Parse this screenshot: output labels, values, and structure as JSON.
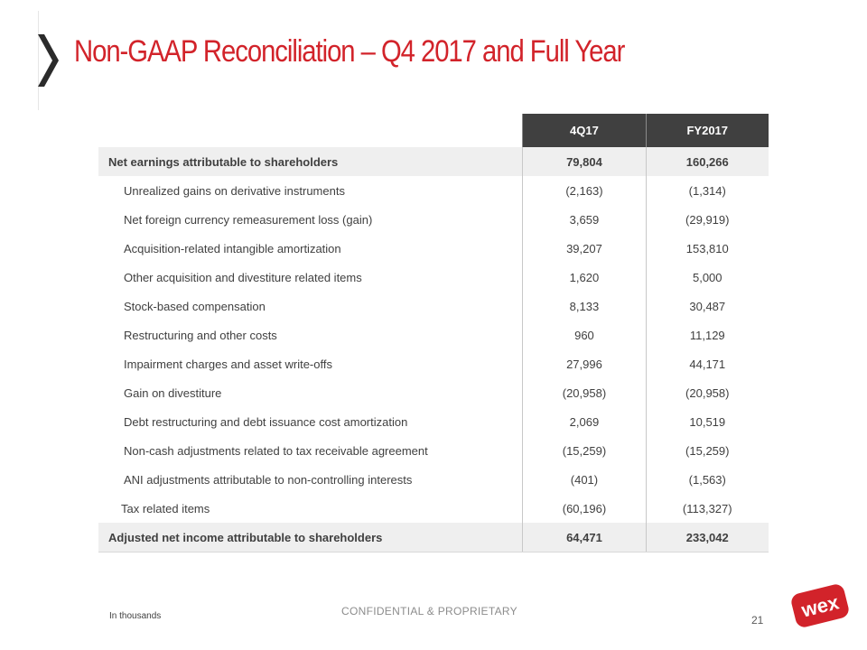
{
  "slide": {
    "title": "Non-GAAP Reconciliation – Q4 2017 and Full Year",
    "footnote": "In thousands",
    "confidential": "CONFIDENTIAL & PROPRIETARY",
    "page_number": "21",
    "logo_text": "wex",
    "accent_color": "#d2232a"
  },
  "table": {
    "columns": [
      "4Q17",
      "FY2017"
    ],
    "rows": [
      {
        "label": "Net earnings  attributable to shareholders",
        "q4": "79,804",
        "fy": "160,266"
      },
      {
        "label": "Unrealized gains on derivative instruments",
        "q4": "(2,163)",
        "fy": "(1,314)"
      },
      {
        "label": "Net foreign currency remeasurement loss (gain)",
        "q4": "3,659",
        "fy": "(29,919)"
      },
      {
        "label": "Acquisition-related intangible amortization",
        "q4": "39,207",
        "fy": "153,810"
      },
      {
        "label": "Other acquisition and divestiture related items",
        "q4": "1,620",
        "fy": "5,000"
      },
      {
        "label": "Stock-based compensation",
        "q4": "8,133",
        "fy": "30,487"
      },
      {
        "label": "Restructuring and other costs",
        "q4": "960",
        "fy": "11,129"
      },
      {
        "label": "Impairment charges and asset write-offs",
        "q4": "27,996",
        "fy": "44,171"
      },
      {
        "label": "Gain on divestiture",
        "q4": "(20,958)",
        "fy": "(20,958)"
      },
      {
        "label": "Debt restructuring and debt issuance cost amortization",
        "q4": "2,069",
        "fy": "10,519"
      },
      {
        "label": "Non-cash adjustments related to tax receivable agreement",
        "q4": "(15,259)",
        "fy": "(15,259)"
      },
      {
        "label": "ANI adjustments attributable to non-controlling interests",
        "q4": "(401)",
        "fy": "(1,563)"
      },
      {
        "label": "Tax related items",
        "q4": "(60,196)",
        "fy": "(113,327)"
      },
      {
        "label": "Adjusted net income attributable to shareholders",
        "q4": "64,471",
        "fy": "233,042"
      }
    ]
  }
}
